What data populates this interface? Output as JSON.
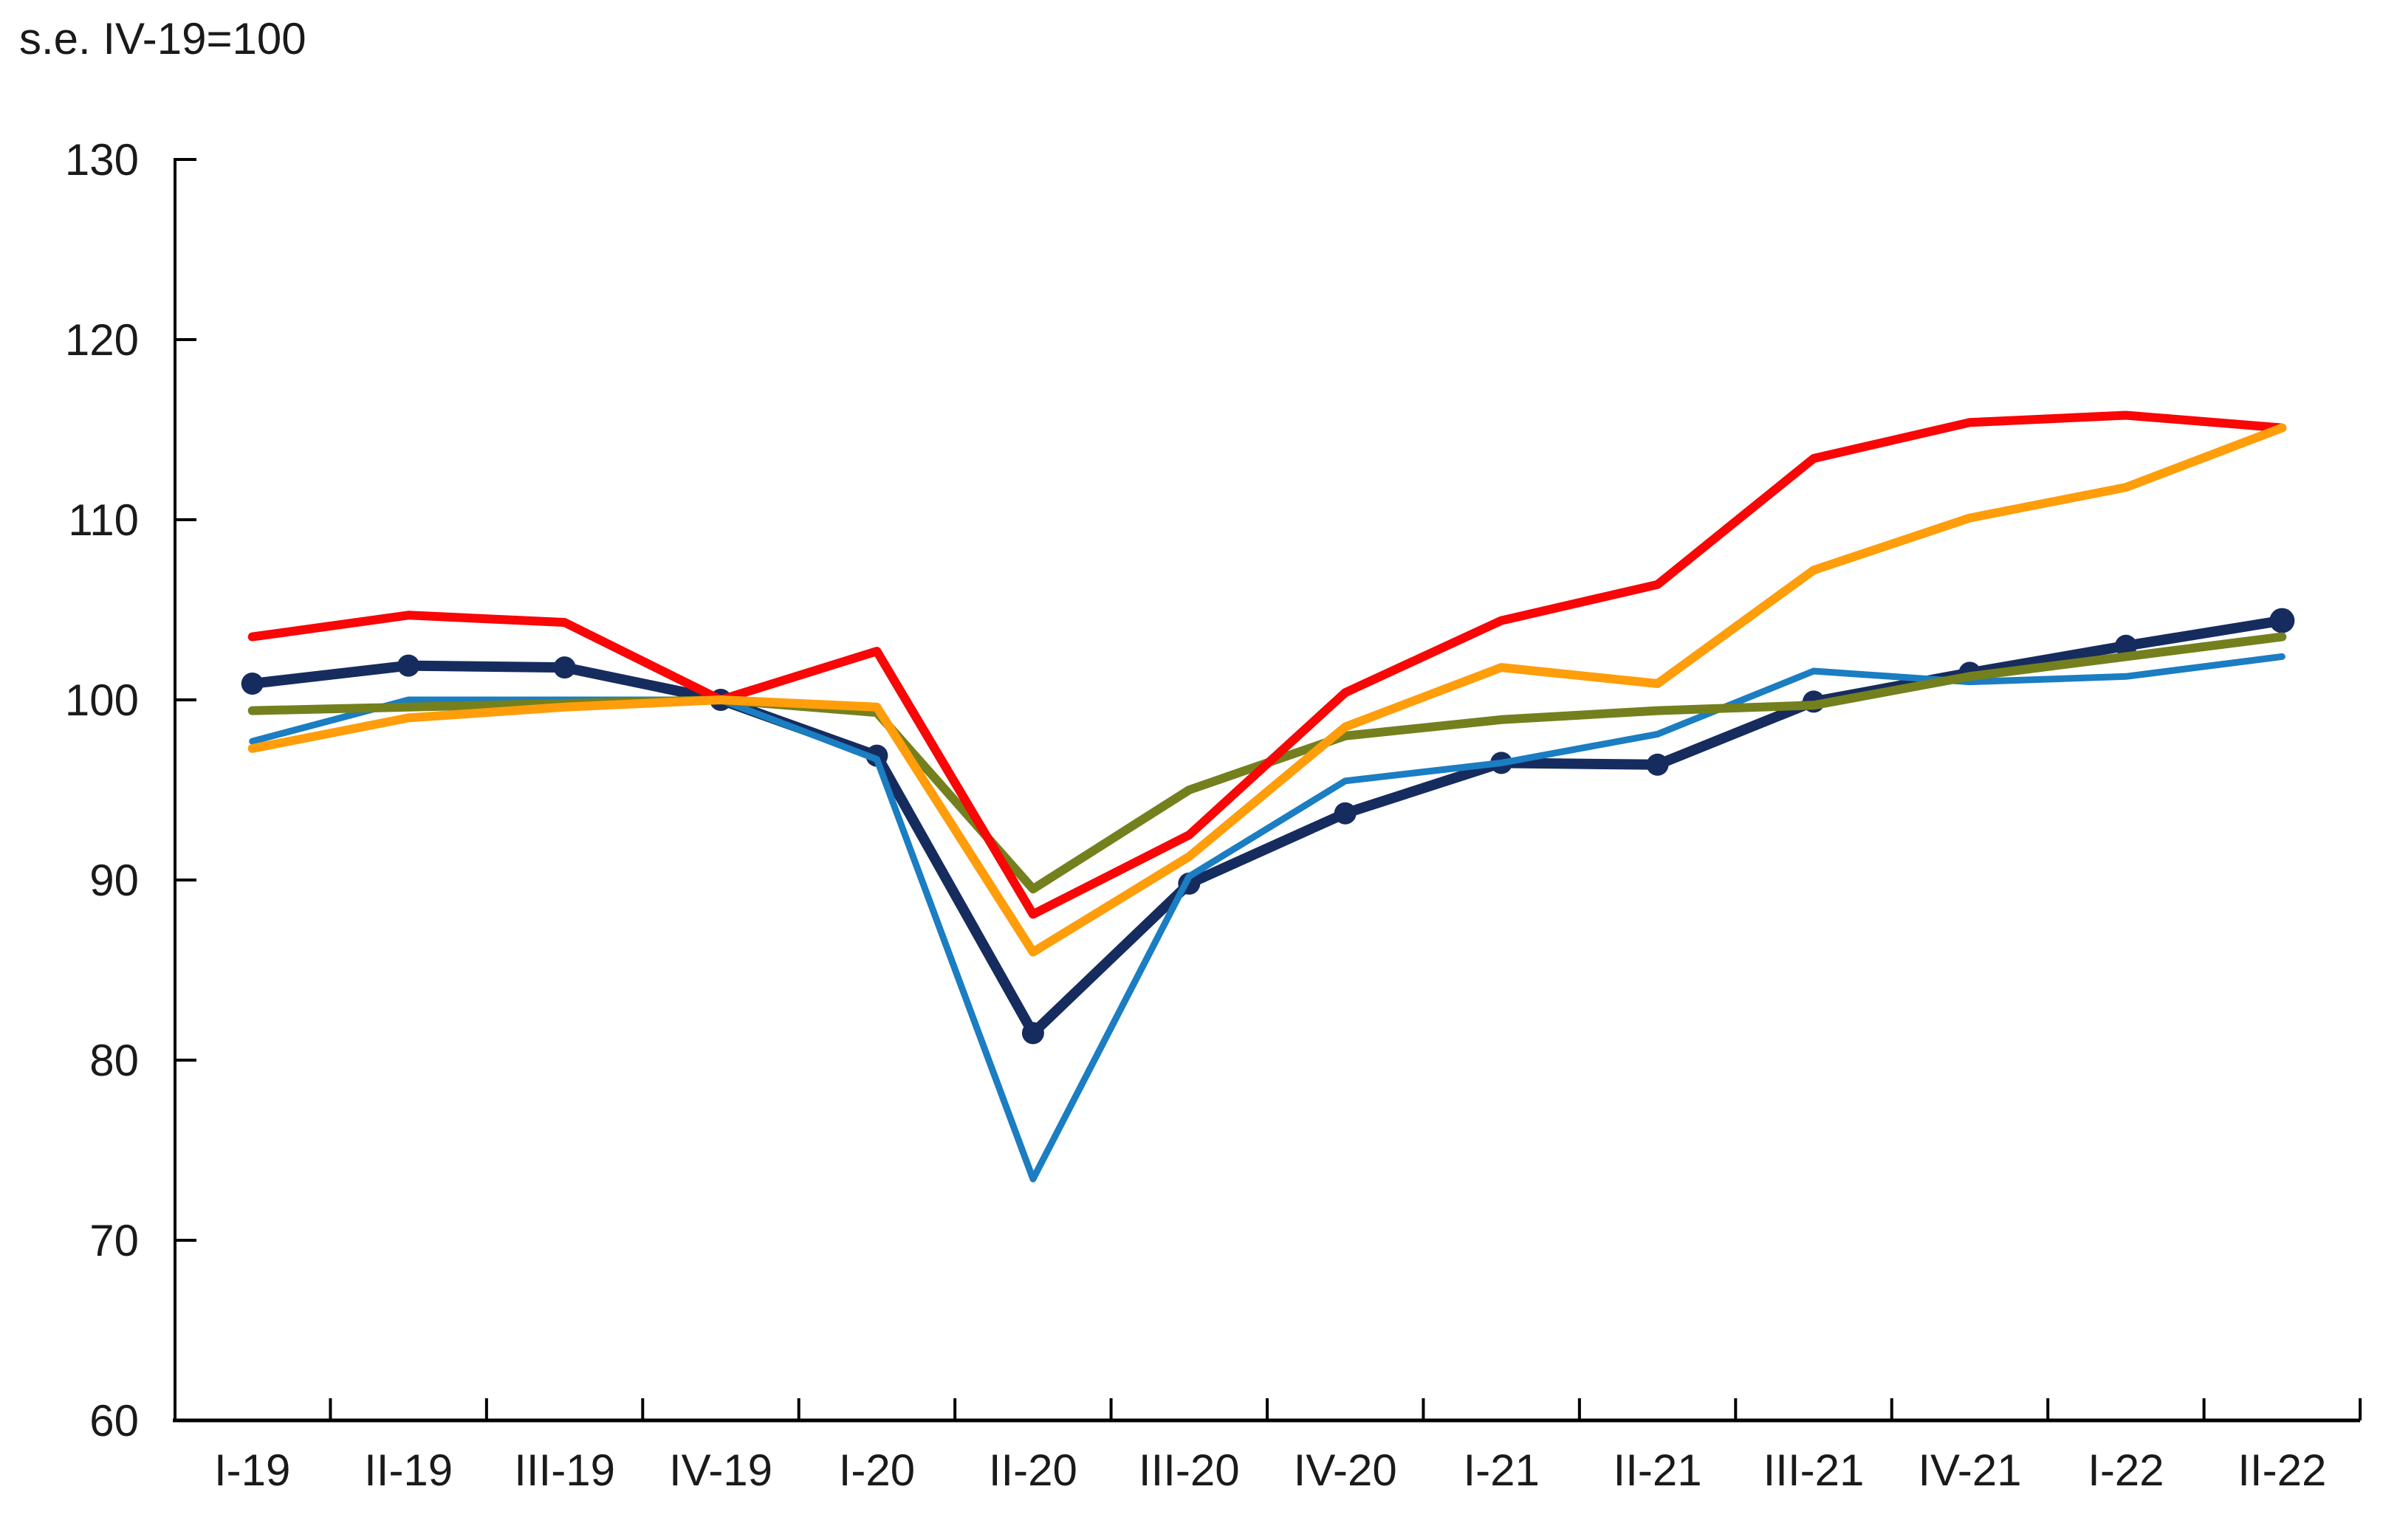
{
  "header": {
    "title": "s.e. IV-19=100"
  },
  "chart_data": {
    "type": "line",
    "title": "s.e. IV-19=100",
    "subtitle": "",
    "xlabel": "",
    "ylabel": "",
    "ylim": [
      60,
      130
    ],
    "y_ticks": [
      130,
      120,
      110,
      100,
      90,
      80,
      70,
      60
    ],
    "grid": false,
    "legend": "none",
    "axis_color": "#000000",
    "categories": [
      "I-19",
      "II-19",
      "III-19",
      "IV-19",
      "I-20",
      "II-20",
      "III-20",
      "IV-20",
      "I-21",
      "II-21",
      "III-21",
      "IV-21",
      "I-22",
      "II-22"
    ],
    "series": [
      {
        "name": "dark-navy-markers",
        "color": "#162C5E",
        "width": 14,
        "marker": "circle",
        "marker_radius": 15,
        "end_marker_radius": 17,
        "values": [
          100.9,
          101.9,
          101.8,
          100.0,
          96.9,
          81.5,
          89.8,
          93.7,
          96.5,
          96.4,
          99.9,
          101.5,
          103.0,
          104.4
        ]
      },
      {
        "name": "light-blue",
        "color": "#1B7DC2",
        "width": 9,
        "marker": "none",
        "values": [
          97.7,
          100.0,
          100.0,
          100.0,
          96.7,
          73.4,
          90.2,
          95.5,
          96.5,
          98.1,
          101.6,
          101.0,
          101.3,
          102.4
        ]
      },
      {
        "name": "olive-green",
        "color": "#74801D",
        "width": 12,
        "marker": "none",
        "values": [
          99.4,
          99.6,
          99.8,
          100.0,
          99.3,
          89.5,
          95.0,
          98.0,
          98.9,
          99.4,
          99.7,
          101.3,
          102.4,
          103.5
        ]
      },
      {
        "name": "red",
        "color": "#F90606",
        "width": 12,
        "marker": "none",
        "values": [
          103.5,
          104.7,
          104.3,
          100.0,
          102.7,
          88.1,
          92.5,
          100.4,
          104.4,
          106.4,
          113.4,
          115.4,
          115.8,
          115.1
        ]
      },
      {
        "name": "orange",
        "color": "#FF9D0A",
        "width": 12,
        "marker": "none",
        "values": [
          97.3,
          99.0,
          99.6,
          100.0,
          99.6,
          86.0,
          91.3,
          98.5,
          101.8,
          100.9,
          107.2,
          110.1,
          111.8,
          115.1
        ]
      }
    ]
  }
}
